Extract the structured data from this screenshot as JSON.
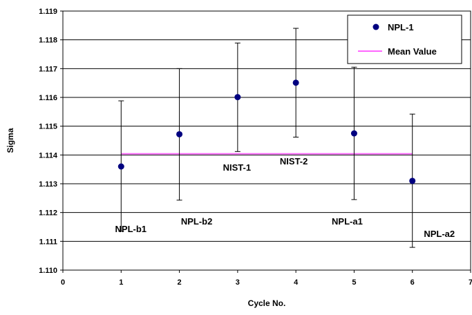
{
  "chart_data": {
    "type": "scatter",
    "xlabel": "Cycle No.",
    "ylabel": "Sigma",
    "xlim": [
      0,
      7
    ],
    "ylim": [
      1.11,
      1.119
    ],
    "x_ticks": [
      "0",
      "1",
      "2",
      "3",
      "4",
      "5",
      "6",
      "7"
    ],
    "y_ticks": [
      "1.110",
      "1.111",
      "1.112",
      "1.113",
      "1.114",
      "1.115",
      "1.116",
      "1.117",
      "1.118",
      "1.119"
    ],
    "grid": "horizontal",
    "legend_position": "top-right",
    "series": [
      {
        "name": "NPL-1",
        "marker": "circle",
        "color": "#000080",
        "points": [
          {
            "x": 1,
            "y": 1.1136,
            "err_low": 1.11135,
            "err_high": 1.11588,
            "label": "NPL-b1"
          },
          {
            "x": 2,
            "y": 1.11472,
            "err_low": 1.11243,
            "err_high": 1.117,
            "label": "NPL-b2"
          },
          {
            "x": 3,
            "y": 1.11601,
            "err_low": 1.11412,
            "err_high": 1.11789,
            "label": "NIST-1"
          },
          {
            "x": 4,
            "y": 1.11651,
            "err_low": 1.11462,
            "err_high": 1.1184,
            "label": "NIST-2"
          },
          {
            "x": 5,
            "y": 1.11475,
            "err_low": 1.11245,
            "err_high": 1.11705,
            "label": "NPL-a1"
          },
          {
            "x": 6,
            "y": 1.1131,
            "err_low": 1.11079,
            "err_high": 1.11542,
            "label": "NPL-a2"
          }
        ]
      },
      {
        "name": "Mean Value",
        "type": "line",
        "color": "#ff66ff",
        "x": [
          1,
          6
        ],
        "y": [
          1.11404,
          1.11404
        ]
      }
    ]
  }
}
